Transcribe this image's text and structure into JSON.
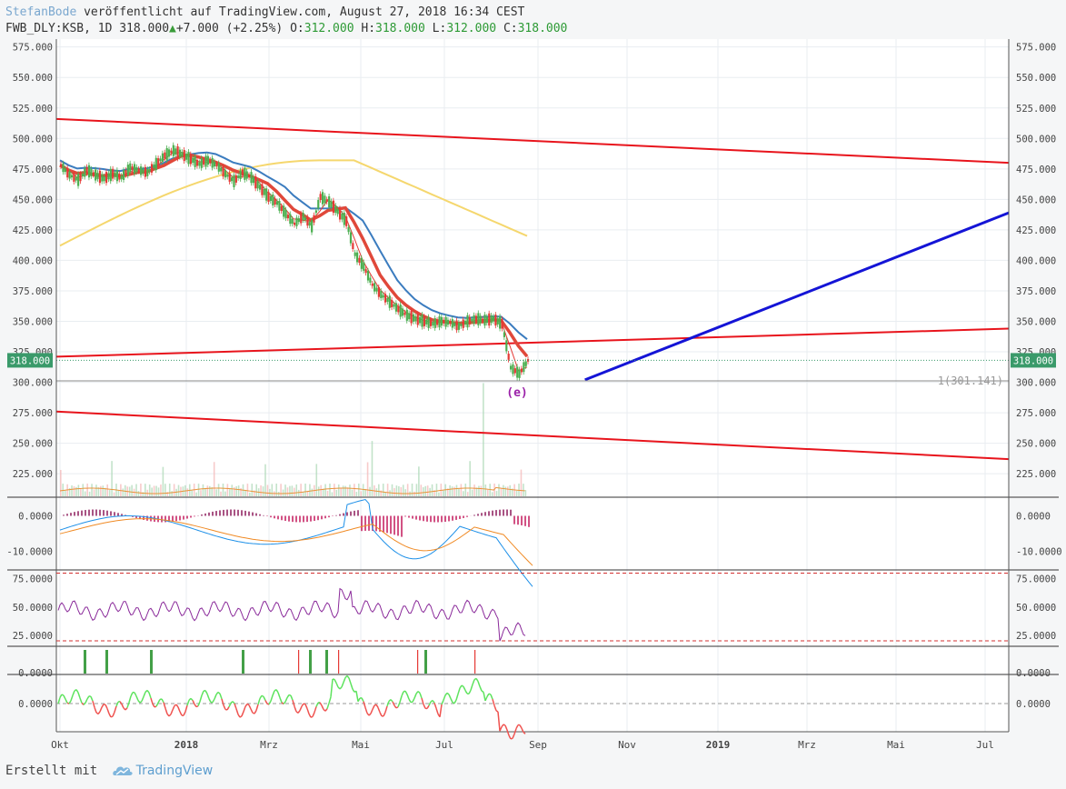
{
  "header": {
    "author": "StefanBode",
    "published": " veröffentlicht auf TradingView.com, August 27, 2018 16:34 CEST",
    "symbol": "FWB_DLY:KSB, 1D",
    "last": "318.000",
    "arrow": "▲",
    "change": "+7.000 (+2.25%)",
    "o_label": "O:",
    "o": "312.000",
    "h_label": "H:",
    "h": "318.000",
    "l_label": "L:",
    "l": "312.000",
    "c_label": "C:",
    "c": "318.000"
  },
  "footer": {
    "made_with": "Erstellt mit",
    "brand": "TradingView"
  },
  "chart_data": {
    "type": "candlestick",
    "colors": {
      "up": "#4caf50",
      "down": "#e53935",
      "trend": "#e8141c",
      "blue_line": "#1414d6",
      "ema_blue": "#3b7cbf",
      "ema_red": "#e0483a",
      "sma_yellow": "#f5d76e",
      "macd_fast": "#1e90e8",
      "macd_slow": "#f08a24",
      "rsi": "#8a2a9a",
      "last_price": "#3a9a6a"
    },
    "x_ticks": [
      "Okt",
      "2018",
      "Mrz",
      "Mai",
      "Jul",
      "Sep",
      "Nov",
      "2019",
      "Mrz",
      "Mai",
      "Jul"
    ],
    "price_axis": {
      "ylim": [
        205,
        577
      ],
      "ticks": [
        "575.000",
        "550.000",
        "525.000",
        "500.000",
        "475.000",
        "450.000",
        "425.000",
        "400.000",
        "375.000",
        "350.000",
        "325.000",
        "300.000",
        "275.000",
        "250.000",
        "225.000"
      ]
    },
    "last_price": "318.000",
    "annotation_label": "1(301.141)",
    "annotation_value": 301.141,
    "wave_label": "(e)",
    "price_path": [
      478,
      470,
      466,
      474,
      470,
      467,
      471,
      468,
      476,
      474,
      472,
      479,
      486,
      490,
      487,
      483,
      479,
      482,
      478,
      471,
      465,
      472,
      468,
      460,
      452,
      447,
      438,
      430,
      436,
      428,
      452,
      448,
      440,
      432,
      405,
      395,
      380,
      372,
      366,
      360,
      355,
      352,
      350,
      348,
      350,
      349,
      346,
      350,
      352,
      351,
      352,
      348,
      312,
      307,
      318
    ],
    "trend_lines": [
      {
        "start": [
          0,
          516
        ],
        "end": [
          1,
          480
        ]
      },
      {
        "start": [
          0,
          321
        ],
        "end": [
          1,
          344
        ]
      },
      {
        "start": [
          0,
          276
        ],
        "end": [
          1,
          237
        ]
      }
    ],
    "projection_line": {
      "start": [
        0.555,
        302
      ],
      "end": [
        1,
        439
      ]
    },
    "macd": {
      "ticks": [
        "0.0000",
        "-10.0000"
      ]
    },
    "rsi": {
      "ticks": [
        "75.0000",
        "50.0000",
        "25.0000"
      ],
      "upper": 80,
      "lower": 20
    },
    "signals": {
      "ticks": [
        "0.0000"
      ]
    },
    "oscillator": {
      "ticks": [
        "0.0000"
      ]
    }
  }
}
